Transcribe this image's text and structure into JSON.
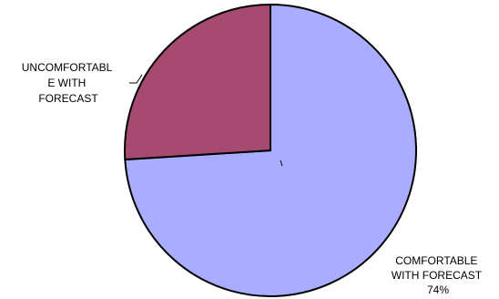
{
  "chart_data": {
    "type": "pie",
    "slices": [
      {
        "label_lines": [
          "COMFORTABLE",
          "WITH FORECAST",
          "74%"
        ],
        "value": 74,
        "color": "#A9ACFF"
      },
      {
        "label_lines": [
          "UNCOMFORTABL",
          "E WITH",
          "FORECAST"
        ],
        "value": 26,
        "color": "#A64A72"
      }
    ],
    "edge_color": "#000000",
    "legend": "none"
  }
}
